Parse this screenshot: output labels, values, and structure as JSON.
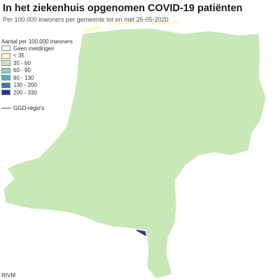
{
  "title": "In het ziekenhuis opgenomen COVID-19 patiënten",
  "subtitle": "Per 100.000 inwoners per gemeente tot en met 25-05-2020",
  "legend": {
    "title": "Aantal per 100.000 inwoners",
    "items": [
      {
        "label": "Geen meldingen",
        "color": "#ffffff"
      },
      {
        "label": "< 35",
        "color": "#fdfbc8"
      },
      {
        "label": "35 - 60",
        "color": "#c9e8b8"
      },
      {
        "label": "60 - 90",
        "color": "#8ed3be"
      },
      {
        "label": "90 - 130",
        "color": "#4cb2c6"
      },
      {
        "label": "130 - 200",
        "color": "#2a7fbf"
      },
      {
        "label": "200 - 330",
        "color": "#253494"
      }
    ]
  },
  "region_key": {
    "label": "GGD-regio's"
  },
  "source": "RIVM",
  "colors": {
    "water": "#ffffff",
    "border": "#ffffff",
    "region_border": "#555555"
  }
}
